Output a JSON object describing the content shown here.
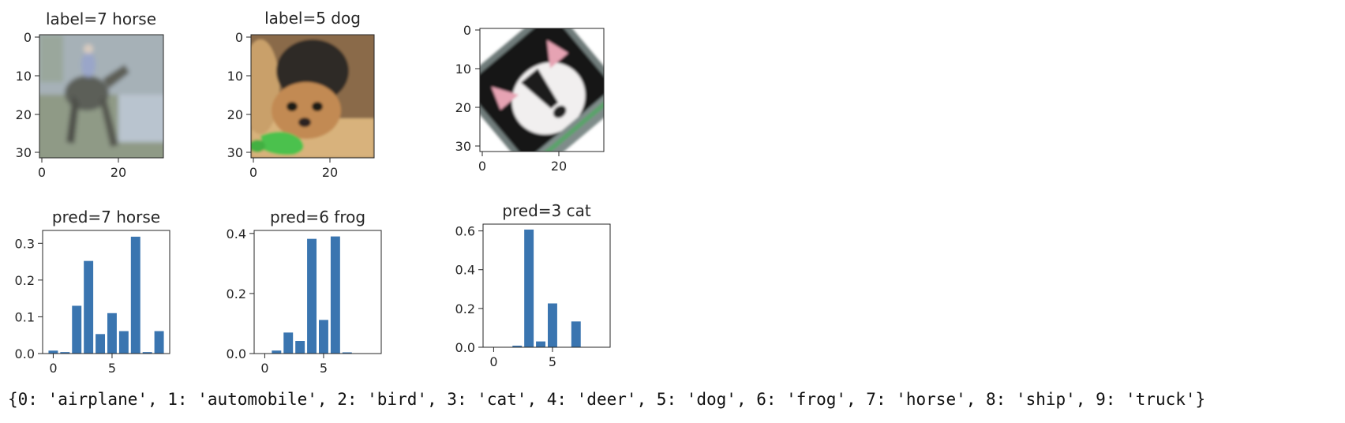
{
  "class_dict_text": "{0: 'airplane', 1: 'automobile', 2: 'bird', 3: 'cat', 4: 'deer', 5: 'dog', 6: 'frog', 7: 'horse', 8: 'ship', 9: 'truck'}",
  "colors": {
    "bar": "#3a75b0",
    "axis": "#262626"
  },
  "images": [
    {
      "title": "label=7 horse",
      "content": "blurry photo of a rider on a horse",
      "xticks": [
        "0",
        "20"
      ],
      "yticks": [
        "0",
        "10",
        "20",
        "30"
      ],
      "palette": {
        "bg": "#a6b1b7",
        "a": "#8e9a8d",
        "b": "#5c5e58",
        "c": "#b9c4cf"
      }
    },
    {
      "title": "label=5 dog",
      "content": "small terrier dog holding a green toy",
      "xticks": [
        "0",
        "20"
      ],
      "yticks": [
        "0",
        "10",
        "20",
        "30"
      ],
      "palette": {
        "bg": "#9a7a55",
        "a": "#3a3430",
        "b": "#c99a63",
        "c": "#4cc14d"
      }
    },
    {
      "title": "",
      "content": "rotated black and white cat face",
      "xticks": [
        "0",
        "20"
      ],
      "yticks": [
        "0",
        "10",
        "20",
        "30"
      ],
      "palette": {
        "bg": "#7f8c8a",
        "a": "#1a1a1a",
        "b": "#f0eeee",
        "c": "#e6a3b3"
      }
    }
  ],
  "chart_data": [
    {
      "type": "bar",
      "title": "pred=7 horse",
      "xlabel": "",
      "ylabel": "",
      "x": [
        0,
        1,
        2,
        3,
        4,
        5,
        6,
        7,
        8,
        9
      ],
      "values": [
        0.008,
        0.004,
        0.13,
        0.252,
        0.053,
        0.11,
        0.061,
        0.318,
        0.004,
        0.061
      ],
      "xlim": [
        -0.9,
        9.9
      ],
      "ylim": [
        0,
        0.335
      ],
      "xticks": [
        0,
        5
      ],
      "yticks": [
        0.0,
        0.1,
        0.2,
        0.3
      ],
      "xtick_labels": [
        "0",
        "5"
      ],
      "ytick_labels": [
        "0.0",
        "0.1",
        "0.2",
        "0.3"
      ],
      "grid": false
    },
    {
      "type": "bar",
      "title": "pred=6 frog",
      "xlabel": "",
      "ylabel": "",
      "x": [
        0,
        1,
        2,
        3,
        4,
        5,
        6,
        7,
        8,
        9
      ],
      "values": [
        0.001,
        0.01,
        0.07,
        0.042,
        0.382,
        0.112,
        0.39,
        0.004,
        0.0,
        0.0
      ],
      "xlim": [
        -0.9,
        9.9
      ],
      "ylim": [
        0,
        0.41
      ],
      "xticks": [
        0,
        5
      ],
      "yticks": [
        0.0,
        0.2,
        0.4
      ],
      "xtick_labels": [
        "0",
        "5"
      ],
      "ytick_labels": [
        "0.0",
        "0.2",
        "0.4"
      ],
      "grid": false
    },
    {
      "type": "bar",
      "title": "pred=3 cat",
      "xlabel": "",
      "ylabel": "",
      "x": [
        0,
        1,
        2,
        3,
        4,
        5,
        6,
        7,
        8,
        9
      ],
      "values": [
        0.001,
        0.001,
        0.008,
        0.607,
        0.03,
        0.226,
        0.001,
        0.133,
        0.001,
        0.0
      ],
      "xlim": [
        -0.9,
        9.9
      ],
      "ylim": [
        0,
        0.635
      ],
      "xticks": [
        0,
        5
      ],
      "yticks": [
        0.0,
        0.2,
        0.4,
        0.6
      ],
      "xtick_labels": [
        "0",
        "5"
      ],
      "ytick_labels": [
        "0.0",
        "0.2",
        "0.4",
        "0.6"
      ],
      "grid": false
    }
  ]
}
